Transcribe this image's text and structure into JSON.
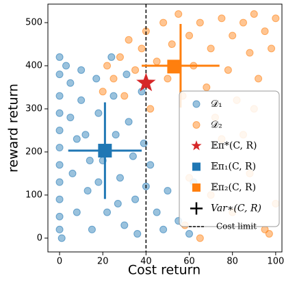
{
  "chart_data": {
    "type": "scatter",
    "xlabel": "Cost return",
    "ylabel": "reward return",
    "xlim": [
      -5.4,
      102.9
    ],
    "ylim": [
      -32,
      543
    ],
    "xticks": [
      0,
      20,
      40,
      60,
      80,
      100
    ],
    "yticks": [
      0,
      100,
      200,
      300,
      400,
      500
    ],
    "series": [
      {
        "name": "𝒟₁",
        "color": "#1f77b4",
        "marker": "circle",
        "x": [
          0,
          0,
          0,
          0,
          0,
          0,
          0,
          0,
          0,
          0,
          0,
          1,
          3,
          5,
          5,
          6,
          8,
          10,
          10,
          12,
          13,
          15,
          17,
          18,
          20,
          22,
          24,
          25,
          26,
          28,
          30,
          31,
          32,
          34,
          35,
          36,
          38,
          39,
          40,
          42,
          45,
          48,
          50,
          55,
          60,
          62,
          18,
          27,
          8,
          14
        ],
        "values": [
          420,
          380,
          330,
          290,
          250,
          210,
          170,
          130,
          90,
          50,
          20,
          0,
          400,
          360,
          280,
          150,
          60,
          390,
          320,
          240,
          110,
          20,
          370,
          290,
          180,
          60,
          420,
          330,
          240,
          140,
          30,
          380,
          270,
          190,
          90,
          10,
          340,
          220,
          120,
          170,
          60,
          20,
          110,
          40,
          10,
          130,
          130,
          80,
          230,
          180
        ]
      },
      {
        "name": "𝒟₂",
        "color": "#ff7f0e",
        "marker": "circle",
        "x": [
          20,
          22,
          25,
          28,
          30,
          32,
          35,
          38,
          40,
          42,
          45,
          48,
          50,
          52,
          55,
          57,
          60,
          62,
          65,
          68,
          70,
          72,
          75,
          78,
          80,
          82,
          85,
          88,
          90,
          92,
          95,
          98,
          100,
          85,
          90,
          75,
          60,
          70,
          80,
          95,
          100,
          58,
          88,
          65,
          97
        ],
        "values": [
          340,
          400,
          370,
          420,
          330,
          460,
          390,
          440,
          480,
          300,
          410,
          500,
          370,
          450,
          520,
          330,
          470,
          400,
          500,
          350,
          440,
          280,
          510,
          390,
          470,
          320,
          500,
          430,
          520,
          370,
          480,
          440,
          510,
          240,
          300,
          230,
          140,
          100,
          60,
          20,
          80,
          30,
          150,
          0,
          10
        ]
      },
      {
        "name": "𝔼π*(C, R)",
        "color": "#d62728",
        "marker": "star",
        "x": [
          40
        ],
        "values": [
          360
        ]
      },
      {
        "name": "𝔼π₁(C, R)",
        "color": "#1f77b4",
        "marker": "square",
        "x": [
          21
        ],
        "values": [
          203
        ]
      },
      {
        "name": "𝔼π₂(C, R)",
        "color": "#ff7f0e",
        "marker": "square",
        "x": [
          53
        ],
        "values": [
          398
        ]
      }
    ],
    "crosses": {
      "name": "Var∗(C, R)",
      "color": "#000000",
      "items": [
        {
          "x": 21,
          "y": 203,
          "xerr": 17,
          "yerr": 112,
          "color": "#1f77b4"
        },
        {
          "x": 56,
          "y": 400,
          "xerr": 18,
          "yerr": 97,
          "color": "#ff7f0e"
        }
      ]
    },
    "vline": {
      "x": 40,
      "name": "Cost limit",
      "color": "#000000"
    }
  }
}
